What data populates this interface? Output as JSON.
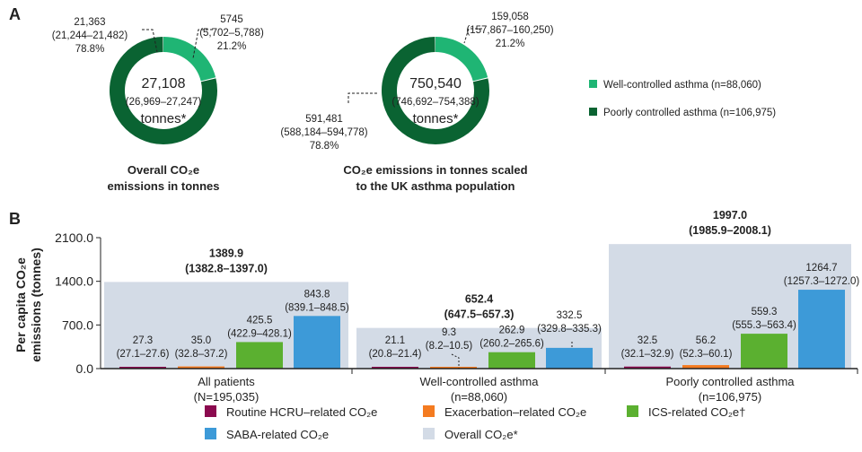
{
  "colors": {
    "well": "#1fb574",
    "poor": "#0a6332",
    "hcru": "#8b0a4f",
    "exac": "#f47b20",
    "ics": "#5bb030",
    "saba": "#3d9ad8",
    "overall": "#d3dbe6"
  },
  "panelA": {
    "label": "A",
    "legend": [
      {
        "key": "well",
        "label": "Well-controlled asthma (n=88,060)"
      },
      {
        "key": "poor",
        "label": "Poorly controlled asthma (n=106,975)"
      }
    ],
    "donuts": [
      {
        "center": [
          "27,108",
          "(26,969–27,247)",
          "tonnes*"
        ],
        "title": [
          "Overall CO₂e",
          "emissions in tonnes"
        ],
        "well": {
          "value": 5745,
          "lines": [
            "5745",
            "(5,702–5,788)",
            "21.2%"
          ]
        },
        "poor": {
          "value": 21363,
          "lines": [
            "21,363",
            "(21,244–21,482)",
            "78.8%"
          ]
        }
      },
      {
        "center": [
          "750,540",
          "(746,692–754,388)",
          "tonnes*"
        ],
        "title": [
          "CO₂e emissions in tonnes scaled",
          "to the UK asthma population"
        ],
        "well": {
          "value": 159058,
          "lines": [
            "159,058",
            "(157,867–160,250)",
            "21.2%"
          ]
        },
        "poor": {
          "value": 591481,
          "lines": [
            "591,481",
            "(588,184–594,778)",
            "78.8%"
          ]
        }
      }
    ]
  },
  "chart_data": {
    "type": "bar",
    "panel_label": "B",
    "ylabel": [
      "Per capita CO₂e",
      "emissions (tonnes)"
    ],
    "ylim": [
      0,
      2100
    ],
    "yticks": [
      "0.0",
      "700.0",
      "1400.0",
      "2100.0"
    ],
    "categories": [
      [
        "All patients",
        "(N=195,035)"
      ],
      [
        "Well-controlled asthma",
        "(n=88,060)"
      ],
      [
        "Poorly controlled asthma",
        "(n=106,975)"
      ]
    ],
    "overall": [
      {
        "value": 1389.9,
        "ci": "(1382.8–1397.0)",
        "label": "1389.9"
      },
      {
        "value": 652.4,
        "ci": "(647.5–657.3)",
        "label": "652.4"
      },
      {
        "value": 1997.0,
        "ci": "(1985.9–2008.1)",
        "label": "1997.0"
      }
    ],
    "series": [
      {
        "name": "Routine HCRU–related CO₂e",
        "key": "hcru",
        "values": [
          27.3,
          21.1,
          32.5
        ],
        "labels": [
          "27.3",
          "21.1",
          "32.5"
        ],
        "ci": [
          "(27.1–27.6)",
          "(20.8–21.4)",
          "(32.1–32.9)"
        ]
      },
      {
        "name": "Exacerbation–related CO₂e",
        "key": "exac",
        "values": [
          35.0,
          9.3,
          56.2
        ],
        "labels": [
          "35.0",
          "9.3",
          "56.2"
        ],
        "ci": [
          "(32.8–37.2)",
          "(8.2–10.5)",
          "(52.3–60.1)"
        ]
      },
      {
        "name": "ICS-related CO₂e†",
        "key": "ics",
        "values": [
          425.5,
          262.9,
          559.3
        ],
        "labels": [
          "425.5",
          "262.9",
          "559.3"
        ],
        "ci": [
          "(422.9–428.1)",
          "(260.2–265.6)",
          "(555.3–563.4)"
        ]
      },
      {
        "name": "SABA-related CO₂e",
        "key": "saba",
        "values": [
          843.8,
          332.5,
          1264.7
        ],
        "labels": [
          "843.8",
          "332.5",
          "1264.7"
        ],
        "ci": [
          "(839.1–848.5)",
          "(329.8–335.3)",
          "(1257.3–1272.0)"
        ]
      }
    ],
    "overall_legend": "Overall CO₂e*"
  }
}
